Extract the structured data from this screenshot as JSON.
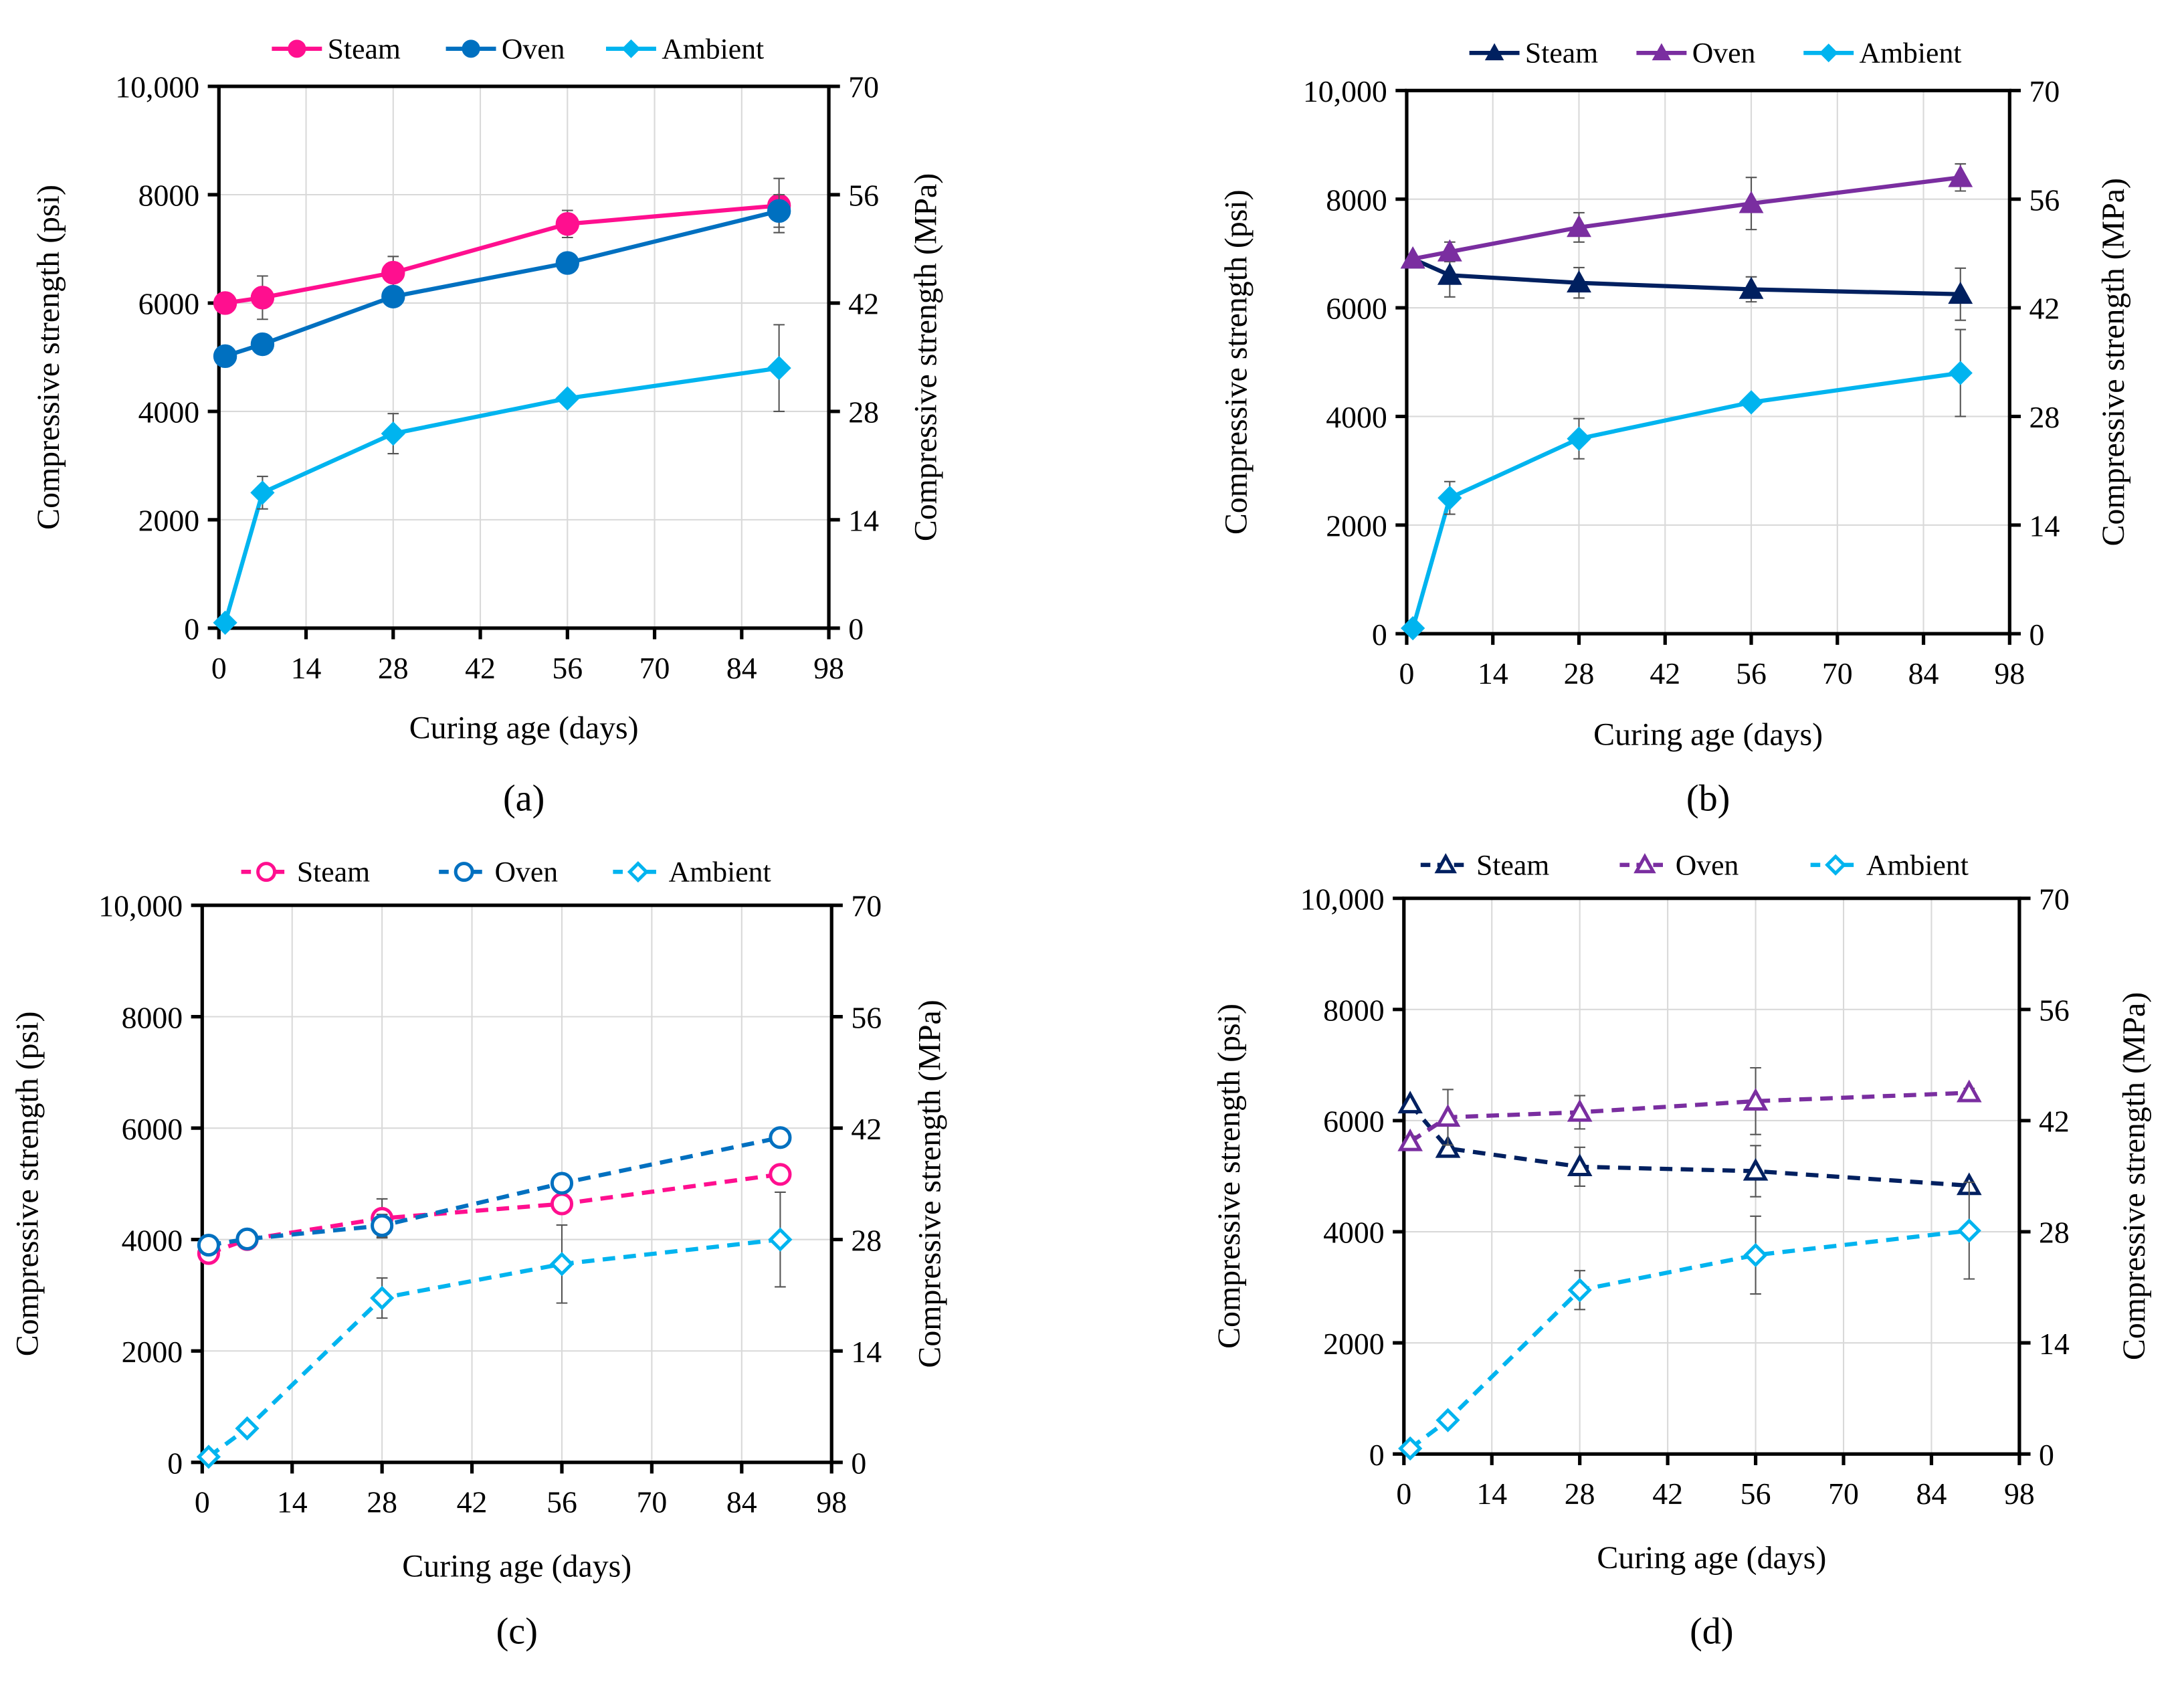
{
  "chart_data": [
    {
      "panel": "a",
      "caption": "(a)",
      "type": "line",
      "xlabel": "Curing age (days)",
      "ylabel": "Compressive  strength (psi)",
      "y2label": "Compressive  strength (MPa)",
      "xlim": [
        0,
        98
      ],
      "xticks": [
        0,
        14,
        28,
        42,
        56,
        70,
        84,
        98
      ],
      "ylim": [
        0,
        10000
      ],
      "yticks": [
        "0",
        "2000",
        "4000",
        "6000",
        "8000",
        "10,000"
      ],
      "y2lim": [
        0,
        70
      ],
      "y2ticks": [
        "0",
        "14",
        "28",
        "42",
        "56",
        "70"
      ],
      "grid": true,
      "legend": "top",
      "line_style": "solid",
      "x": [
        1,
        7,
        28,
        56,
        90
      ],
      "series": [
        {
          "name": "Steam",
          "marker": "circle",
          "filled": true,
          "color": "#ff0f8f",
          "values": [
            6000,
            6100,
            6560,
            7460,
            7800
          ],
          "err": [
            0,
            400,
            300,
            250,
            500
          ]
        },
        {
          "name": "Oven",
          "marker": "circle",
          "filled": true,
          "color": "#0070c0",
          "values": [
            5020,
            5240,
            6120,
            6740,
            7700
          ],
          "err": [
            0,
            0,
            0,
            0,
            300
          ]
        },
        {
          "name": "Ambient",
          "marker": "diamond",
          "filled": true,
          "color": "#00b4ef",
          "values": [
            100,
            2500,
            3590,
            4240,
            4800
          ],
          "err": [
            0,
            300,
            370,
            0,
            800
          ]
        }
      ]
    },
    {
      "panel": "b",
      "caption": "(b)",
      "type": "line",
      "xlabel": "Curing age (days)",
      "ylabel": "Compressive  strength (psi)",
      "y2label": "Compressive  strength (MPa)",
      "xlim": [
        0,
        98
      ],
      "xticks": [
        0,
        14,
        28,
        42,
        56,
        70,
        84,
        98
      ],
      "ylim": [
        0,
        10000
      ],
      "yticks": [
        "0",
        "2000",
        "4000",
        "6000",
        "8000",
        "10,000"
      ],
      "y2lim": [
        0,
        70
      ],
      "y2ticks": [
        "0",
        "14",
        "28",
        "42",
        "56",
        "70"
      ],
      "grid": true,
      "legend": "top",
      "line_style": "solid",
      "x": [
        1,
        7,
        28,
        56,
        90
      ],
      "series": [
        {
          "name": "Steam",
          "marker": "triangle",
          "filled": true,
          "color": "#002060",
          "values": [
            6900,
            6600,
            6460,
            6340,
            6250
          ],
          "err": [
            0,
            400,
            280,
            230,
            480
          ]
        },
        {
          "name": "Oven",
          "marker": "triangle",
          "filled": true,
          "color": "#7a2ea0",
          "values": [
            6900,
            7030,
            7480,
            7920,
            8400
          ],
          "err": [
            0,
            180,
            270,
            480,
            250
          ]
        },
        {
          "name": "Ambient",
          "marker": "diamond",
          "filled": true,
          "color": "#00b4ef",
          "values": [
            100,
            2500,
            3590,
            4260,
            4800
          ],
          "err": [
            0,
            300,
            370,
            0,
            800
          ]
        }
      ]
    },
    {
      "panel": "c",
      "caption": "(c)",
      "type": "line",
      "xlabel": "Curing age (days)",
      "ylabel": "Compressive  strength (psi)",
      "y2label": "Compressive  strength (MPa)",
      "xlim": [
        0,
        98
      ],
      "xticks": [
        0,
        14,
        28,
        42,
        56,
        70,
        84,
        98
      ],
      "ylim": [
        0,
        10000
      ],
      "yticks": [
        "0",
        "2000",
        "4000",
        "6000",
        "8000",
        "10,000"
      ],
      "y2lim": [
        0,
        70
      ],
      "y2ticks": [
        "0",
        "14",
        "28",
        "42",
        "56",
        "70"
      ],
      "grid": true,
      "legend": "top",
      "line_style": "dashed",
      "x": [
        1,
        7,
        28,
        56,
        90
      ],
      "series": [
        {
          "name": "Steam",
          "marker": "circle",
          "filled": false,
          "color": "#ff0f8f",
          "values": [
            3750,
            4000,
            4380,
            4640,
            5170
          ],
          "err": [
            0,
            0,
            350,
            0,
            0
          ]
        },
        {
          "name": "Oven",
          "marker": "circle",
          "filled": false,
          "color": "#0070c0",
          "values": [
            3900,
            4010,
            4250,
            5010,
            5830
          ],
          "err": [
            0,
            0,
            200,
            0,
            0
          ]
        },
        {
          "name": "Ambient",
          "marker": "diamond",
          "filled": false,
          "color": "#00b4ef",
          "values": [
            100,
            610,
            2950,
            3560,
            4000
          ],
          "err": [
            0,
            0,
            360,
            700,
            850
          ]
        }
      ]
    },
    {
      "panel": "d",
      "caption": "(d)",
      "type": "line",
      "xlabel": "Curing age (days)",
      "ylabel": "Compressive  strength (psi)",
      "y2label": "Compressive  strength (MPa)",
      "xlim": [
        0,
        98
      ],
      "xticks": [
        0,
        14,
        28,
        42,
        56,
        70,
        84,
        98
      ],
      "ylim": [
        0,
        10000
      ],
      "yticks": [
        "0",
        "2000",
        "4000",
        "6000",
        "8000",
        "10,000"
      ],
      "y2lim": [
        0,
        70
      ],
      "y2ticks": [
        "0",
        "14",
        "28",
        "42",
        "56",
        "70"
      ],
      "grid": true,
      "legend": "top",
      "line_style": "dashed",
      "x": [
        1,
        7,
        28,
        56,
        90
      ],
      "series": [
        {
          "name": "Steam",
          "marker": "triangle",
          "filled": false,
          "color": "#002060",
          "values": [
            6300,
            5500,
            5170,
            5090,
            4830
          ],
          "err": [
            0,
            0,
            350,
            460,
            0
          ]
        },
        {
          "name": "Oven",
          "marker": "triangle",
          "filled": false,
          "color": "#7a2ea0",
          "values": [
            5620,
            6060,
            6150,
            6350,
            6500
          ],
          "err": [
            100,
            500,
            300,
            600,
            80
          ]
        },
        {
          "name": "Ambient",
          "marker": "diamond",
          "filled": false,
          "color": "#00b4ef",
          "values": [
            100,
            610,
            2950,
            3580,
            4020
          ],
          "err": [
            0,
            0,
            350,
            700,
            870
          ]
        }
      ]
    }
  ]
}
